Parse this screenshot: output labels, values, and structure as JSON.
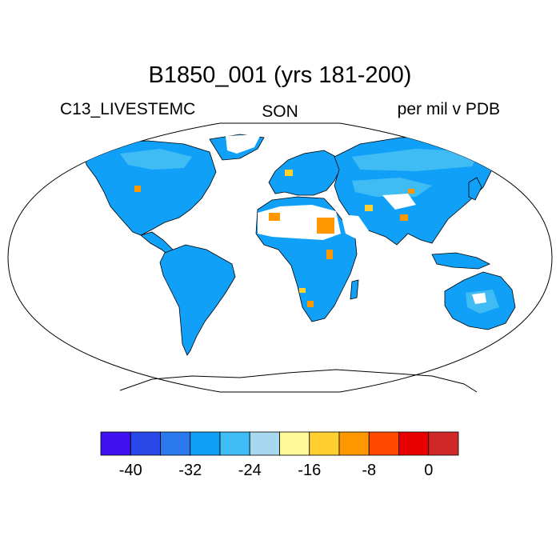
{
  "title": "B1850_001 (yrs 181-200)",
  "variable": "C13_LIVESTEMC",
  "season": "SON",
  "units": "per mil v PDB",
  "colorbar": {
    "colors": [
      "#4010f0",
      "#2848e8",
      "#2c78ee",
      "#10a0f8",
      "#40bcf4",
      "#a8d8f0",
      "#fff898",
      "#ffd030",
      "#ff9800",
      "#ff4800",
      "#e80000",
      "#d02828"
    ],
    "tick_labels": [
      "-40",
      "-32",
      "-24",
      "-16",
      "-8",
      "0"
    ]
  },
  "map_colors": {
    "land_dominant": "#10a0f8",
    "land_secondary": "#40bcf4",
    "hotspot_orange": "#ff9800",
    "hotspot_yellow": "#ffd030",
    "no_data": "#ffffff"
  }
}
